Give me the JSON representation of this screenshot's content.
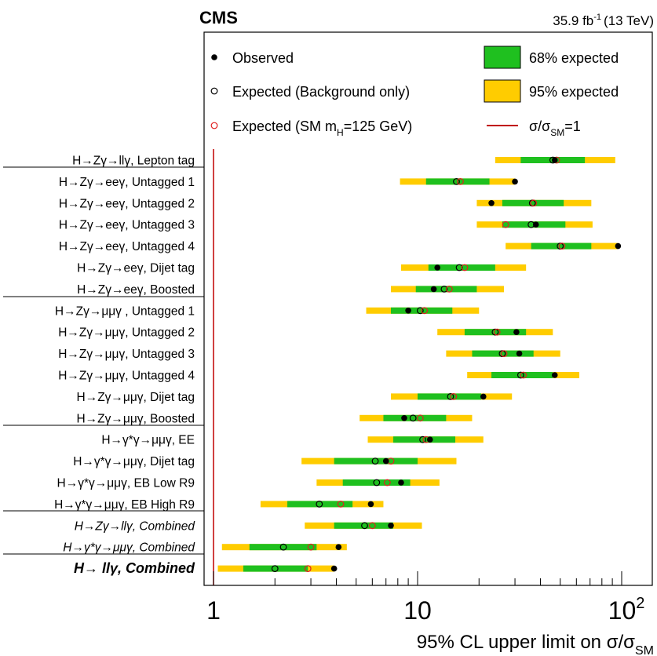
{
  "header": {
    "experiment": "CMS",
    "lumi_value": "35.9 fb",
    "lumi_exp": "-1",
    "energy": "(13 TeV)"
  },
  "legend": {
    "observed": "Observed",
    "expected_bkg": "Expected (Background only)",
    "expected_sm_pre": "Expected (SM m",
    "expected_sm_sub": "H",
    "expected_sm_post": "=125 GeV)",
    "band68": "68% expected",
    "band95": "95% expected",
    "line_pre": "σ/σ",
    "line_sub": "SM",
    "line_post": "=1"
  },
  "colors": {
    "band68": "#1fc01f",
    "band95": "#ffcc00",
    "sm_marker": "#e02020",
    "sm_line": "#c00000",
    "observed": "#000000"
  },
  "chart_data": {
    "type": "scatter",
    "x_scale": "log",
    "xlim": [
      0.9,
      140
    ],
    "xlabel_pre": "95% CL upper limit on σ/σ",
    "xlabel_sub": "SM",
    "x_ticks": [
      {
        "value": 1,
        "label": "1",
        "exp": ""
      },
      {
        "value": 10,
        "label": "10",
        "exp": ""
      },
      {
        "value": 100,
        "label": "10",
        "exp": "2"
      }
    ],
    "categories": [
      {
        "label": "H→Zγ→llγ, Lepton tag",
        "style": "normal",
        "observed": 47,
        "expected_bkg": 46,
        "expected_sm": 48,
        "band68": [
          32,
          66
        ],
        "band95": [
          24,
          93
        ]
      },
      {
        "label": "H→Zγ→eeγ, Untagged 1",
        "style": "normal",
        "observed": 30,
        "expected_bkg": 15.5,
        "expected_sm": 16.2,
        "band68": [
          11,
          22.5
        ],
        "band95": [
          8.2,
          30
        ]
      },
      {
        "label": "H→Zγ→eeγ, Untagged 2",
        "style": "normal",
        "observed": 23,
        "expected_bkg": 36.5,
        "expected_sm": 37,
        "band68": [
          26,
          52
        ],
        "band95": [
          19.5,
          71
        ]
      },
      {
        "label": "H→Zγ→eeγ, Untagged 3",
        "style": "normal",
        "observed": 38,
        "expected_bkg": 36,
        "expected_sm": 27,
        "band68": [
          26,
          53
        ],
        "band95": [
          19.5,
          72
        ]
      },
      {
        "label": "H→Zγ→eeγ, Untagged 4",
        "style": "normal",
        "observed": 96,
        "expected_bkg": 50,
        "expected_sm": 51,
        "band68": [
          36,
          71
        ],
        "band95": [
          27,
          96
        ]
      },
      {
        "label": "H→Zγ→eeγ, Dijet tag",
        "style": "normal",
        "observed": 12.5,
        "expected_bkg": 16,
        "expected_sm": 17,
        "band68": [
          11.3,
          24
        ],
        "band95": [
          8.3,
          34
        ]
      },
      {
        "label": "H→Zγ→eeγ, Boosted",
        "style": "normal",
        "observed": 12,
        "expected_bkg": 13.5,
        "expected_sm": 14.3,
        "band68": [
          9.8,
          19.5
        ],
        "band95": [
          7.4,
          26.5
        ]
      },
      {
        "label": "H→Zγ→μμγ , Untagged 1",
        "style": "normal",
        "observed": 9,
        "expected_bkg": 10.3,
        "expected_sm": 10.8,
        "band68": [
          7.4,
          14.8
        ],
        "band95": [
          5.6,
          20
        ]
      },
      {
        "label": "H→Zγ→μμγ, Untagged 2",
        "style": "normal",
        "observed": 30.5,
        "expected_bkg": 24,
        "expected_sm": 24.5,
        "band68": [
          17,
          34
        ],
        "band95": [
          12.5,
          46
        ]
      },
      {
        "label": "H→Zγ→μμγ, Untagged 3",
        "style": "normal",
        "observed": 31.5,
        "expected_bkg": 26,
        "expected_sm": 26.5,
        "band68": [
          18.5,
          37
        ],
        "band95": [
          13.8,
          50
        ]
      },
      {
        "label": "H→Zγ→μμγ, Untagged 4",
        "style": "normal",
        "observed": 47,
        "expected_bkg": 32,
        "expected_sm": 33,
        "band68": [
          23,
          46
        ],
        "band95": [
          17.5,
          62
        ]
      },
      {
        "label": "H→Zγ→μμγ, Dijet tag",
        "style": "normal",
        "observed": 21,
        "expected_bkg": 14.5,
        "expected_sm": 15,
        "band68": [
          10,
          20.5
        ],
        "band95": [
          7.4,
          29
        ]
      },
      {
        "label": "H→Zγ→μμγ, Boosted",
        "style": "normal",
        "observed": 8.6,
        "expected_bkg": 9.5,
        "expected_sm": 10.3,
        "band68": [
          6.8,
          13.8
        ],
        "band95": [
          5.2,
          18.5
        ]
      },
      {
        "label": "H→γ*γ→μμγ, EE",
        "style": "normal",
        "observed": 11.5,
        "expected_bkg": 10.6,
        "expected_sm": 11,
        "band68": [
          7.6,
          15.3
        ],
        "band95": [
          5.7,
          21
        ]
      },
      {
        "label": "H→γ*γ→μμγ, Dijet tag",
        "style": "normal",
        "observed": 7,
        "expected_bkg": 6.2,
        "expected_sm": 7.4,
        "band68": [
          3.9,
          10
        ],
        "band95": [
          2.7,
          15.5
        ]
      },
      {
        "label": "H→γ*γ→μμγ, EB Low R9",
        "style": "normal",
        "observed": 8.3,
        "expected_bkg": 6.3,
        "expected_sm": 7.1,
        "band68": [
          4.3,
          9.2
        ],
        "band95": [
          3.2,
          12.8
        ]
      },
      {
        "label": "H→γ*γ→μμγ, EB High R9",
        "style": "normal",
        "observed": 5.9,
        "expected_bkg": 3.3,
        "expected_sm": 4.2,
        "band68": [
          2.3,
          4.8
        ],
        "band95": [
          1.7,
          6.8
        ]
      },
      {
        "label": "H→Zγ→llγ, Combined",
        "style": "italic",
        "observed": 7.4,
        "expected_bkg": 5.5,
        "expected_sm": 6,
        "band68": [
          3.9,
          7.6
        ],
        "band95": [
          2.8,
          10.5
        ]
      },
      {
        "label": "H→γ*γ→μμγ, Combined",
        "style": "italic",
        "observed": 4.1,
        "expected_bkg": 2.2,
        "expected_sm": 3,
        "band68": [
          1.5,
          3.2
        ],
        "band95": [
          1.1,
          4.5
        ]
      },
      {
        "label": "H→ llγ, Combined",
        "style": "bold",
        "observed": 3.9,
        "expected_bkg": 2,
        "expected_sm": 2.9,
        "band68": [
          1.4,
          2.9
        ],
        "band95": [
          1.05,
          3.9
        ]
      }
    ]
  }
}
